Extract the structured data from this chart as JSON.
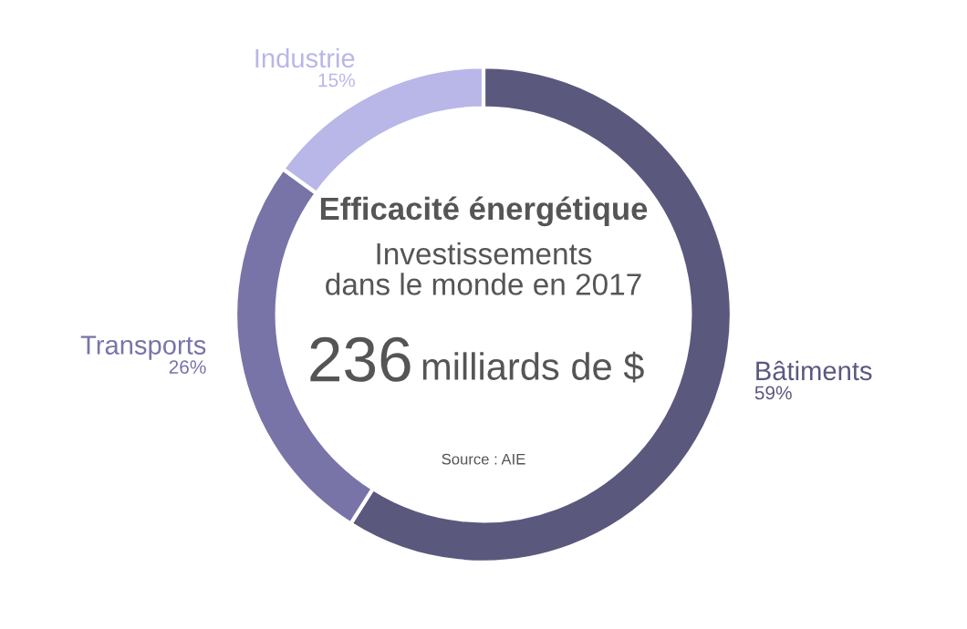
{
  "chart_data": {
    "type": "donut",
    "title": "Efficacité énergétique",
    "subtitle": "Investissements\ndans le monde en 2017",
    "categories": [
      "Bâtiments",
      "Transports",
      "Industrie"
    ],
    "values": [
      59,
      26,
      15
    ],
    "value_labels": [
      "59%",
      "26%",
      "15%"
    ],
    "colors": [
      "#5b587e",
      "#7874a8",
      "#b9b6e8"
    ],
    "annotations": [
      "236",
      "milliards de $",
      "Source : AIE"
    ],
    "legend": false
  }
}
